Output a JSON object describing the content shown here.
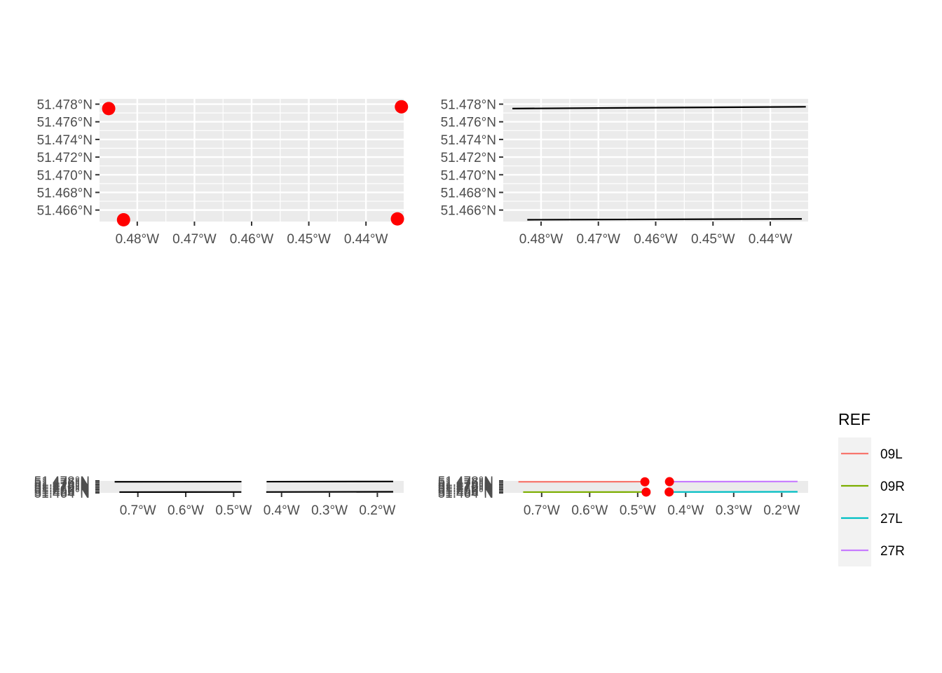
{
  "chart_data": [
    {
      "type": "scatter",
      "panel": "top-left",
      "x_ticks": [
        {
          "value": -0.48,
          "label": "0.48°W"
        },
        {
          "value": -0.47,
          "label": "0.47°W"
        },
        {
          "value": -0.46,
          "label": "0.46°W"
        },
        {
          "value": -0.45,
          "label": "0.45°W"
        },
        {
          "value": -0.44,
          "label": "0.44°W"
        }
      ],
      "y_ticks": [
        {
          "value": 51.466,
          "label": "51.466°N"
        },
        {
          "value": 51.468,
          "label": "51.468°N"
        },
        {
          "value": 51.47,
          "label": "51.470°N"
        },
        {
          "value": 51.472,
          "label": "51.472°N"
        },
        {
          "value": 51.474,
          "label": "51.474°N"
        },
        {
          "value": 51.476,
          "label": "51.476°N"
        },
        {
          "value": 51.478,
          "label": "51.478°N"
        }
      ],
      "xlim": [
        -0.4866,
        -0.4334
      ],
      "ylim": [
        51.4647,
        51.4786
      ],
      "points": [
        {
          "x": -0.485,
          "y": 51.4775
        },
        {
          "x": -0.4824,
          "y": 51.4649
        },
        {
          "x": -0.4338,
          "y": 51.4777
        },
        {
          "x": -0.4345,
          "y": 51.465
        }
      ],
      "point_color": "#ff0000",
      "grid": true
    },
    {
      "type": "line",
      "panel": "top-right",
      "x_ticks": [
        {
          "value": -0.48,
          "label": "0.48°W"
        },
        {
          "value": -0.47,
          "label": "0.47°W"
        },
        {
          "value": -0.46,
          "label": "0.46°W"
        },
        {
          "value": -0.45,
          "label": "0.45°W"
        },
        {
          "value": -0.44,
          "label": "0.44°W"
        }
      ],
      "y_ticks": [
        {
          "value": 51.466,
          "label": "51.466°N"
        },
        {
          "value": 51.468,
          "label": "51.468°N"
        },
        {
          "value": 51.47,
          "label": "51.470°N"
        },
        {
          "value": 51.472,
          "label": "51.472°N"
        },
        {
          "value": 51.474,
          "label": "51.474°N"
        },
        {
          "value": 51.476,
          "label": "51.476°N"
        },
        {
          "value": 51.478,
          "label": "51.478°N"
        }
      ],
      "xlim": [
        -0.4866,
        -0.4334
      ],
      "ylim": [
        51.4647,
        51.4786
      ],
      "lines": [
        {
          "x": [
            -0.485,
            -0.4338
          ],
          "y": [
            51.4775,
            51.4777
          ],
          "color": "#000000"
        },
        {
          "x": [
            -0.4824,
            -0.4345
          ],
          "y": [
            51.4649,
            51.465
          ],
          "color": "#000000"
        }
      ],
      "grid": true
    },
    {
      "type": "line",
      "panel": "bottom-left",
      "x_ticks": [
        {
          "value": -0.7,
          "label": "0.7°W"
        },
        {
          "value": -0.6,
          "label": "0.6°W"
        },
        {
          "value": -0.5,
          "label": "0.5°W"
        },
        {
          "value": -0.4,
          "label": "0.4°W"
        },
        {
          "value": -0.3,
          "label": "0.3°W"
        },
        {
          "value": -0.2,
          "label": "0.2°W"
        }
      ],
      "y_ticks_overlapping": true,
      "xlim": [
        -0.78,
        -0.145
      ],
      "ylim": [
        51.464,
        51.4786
      ],
      "lines": [
        {
          "x": [
            -0.7484,
            -0.4838
          ],
          "y": [
            51.4775,
            51.4777
          ],
          "color": "#000000"
        },
        {
          "x": [
            -0.7385,
            -0.484
          ],
          "y": [
            51.4649,
            51.465
          ],
          "color": "#000000"
        },
        {
          "x": [
            -0.4312,
            -0.167
          ],
          "y": [
            51.4777,
            51.4779
          ],
          "color": "#000000"
        },
        {
          "x": [
            -0.432,
            -0.167
          ],
          "y": [
            51.465,
            51.4653
          ],
          "color": "#000000"
        }
      ],
      "blank_band": [
        -0.4834,
        -0.4316
      ],
      "grid": false
    },
    {
      "type": "line",
      "panel": "bottom-right",
      "x_ticks": [
        {
          "value": -0.7,
          "label": "0.7°W"
        },
        {
          "value": -0.6,
          "label": "0.6°W"
        },
        {
          "value": -0.5,
          "label": "0.5°W"
        },
        {
          "value": -0.4,
          "label": "0.4°W"
        },
        {
          "value": -0.3,
          "label": "0.3°W"
        },
        {
          "value": -0.2,
          "label": "0.2°W"
        }
      ],
      "y_ticks_overlapping": true,
      "xlim": [
        -0.78,
        -0.145
      ],
      "ylim": [
        51.464,
        51.4786
      ],
      "series": [
        {
          "name": "09L",
          "color": "#f8766d",
          "x": [
            -0.7484,
            -0.484
          ],
          "y": [
            51.4775,
            51.4777
          ]
        },
        {
          "name": "09R",
          "color": "#7cae00",
          "x": [
            -0.7385,
            -0.4826
          ],
          "y": [
            51.4649,
            51.465
          ]
        },
        {
          "name": "27L",
          "color": "#00bfc4",
          "x": [
            -0.4322,
            -0.167
          ],
          "y": [
            51.465,
            51.4653
          ]
        },
        {
          "name": "27R",
          "color": "#c77cff",
          "x": [
            -0.4328,
            -0.167
          ],
          "y": [
            51.4777,
            51.4779
          ]
        }
      ],
      "points": [
        {
          "x": -0.485,
          "y": 51.4775
        },
        {
          "x": -0.4824,
          "y": 51.4649
        },
        {
          "x": -0.4338,
          "y": 51.4777
        },
        {
          "x": -0.4345,
          "y": 51.465
        }
      ],
      "point_color": "#ff0000",
      "blank_band": [
        -0.48,
        -0.4372
      ],
      "legend": {
        "title": "REF",
        "placement": "right"
      },
      "grid": false
    }
  ]
}
